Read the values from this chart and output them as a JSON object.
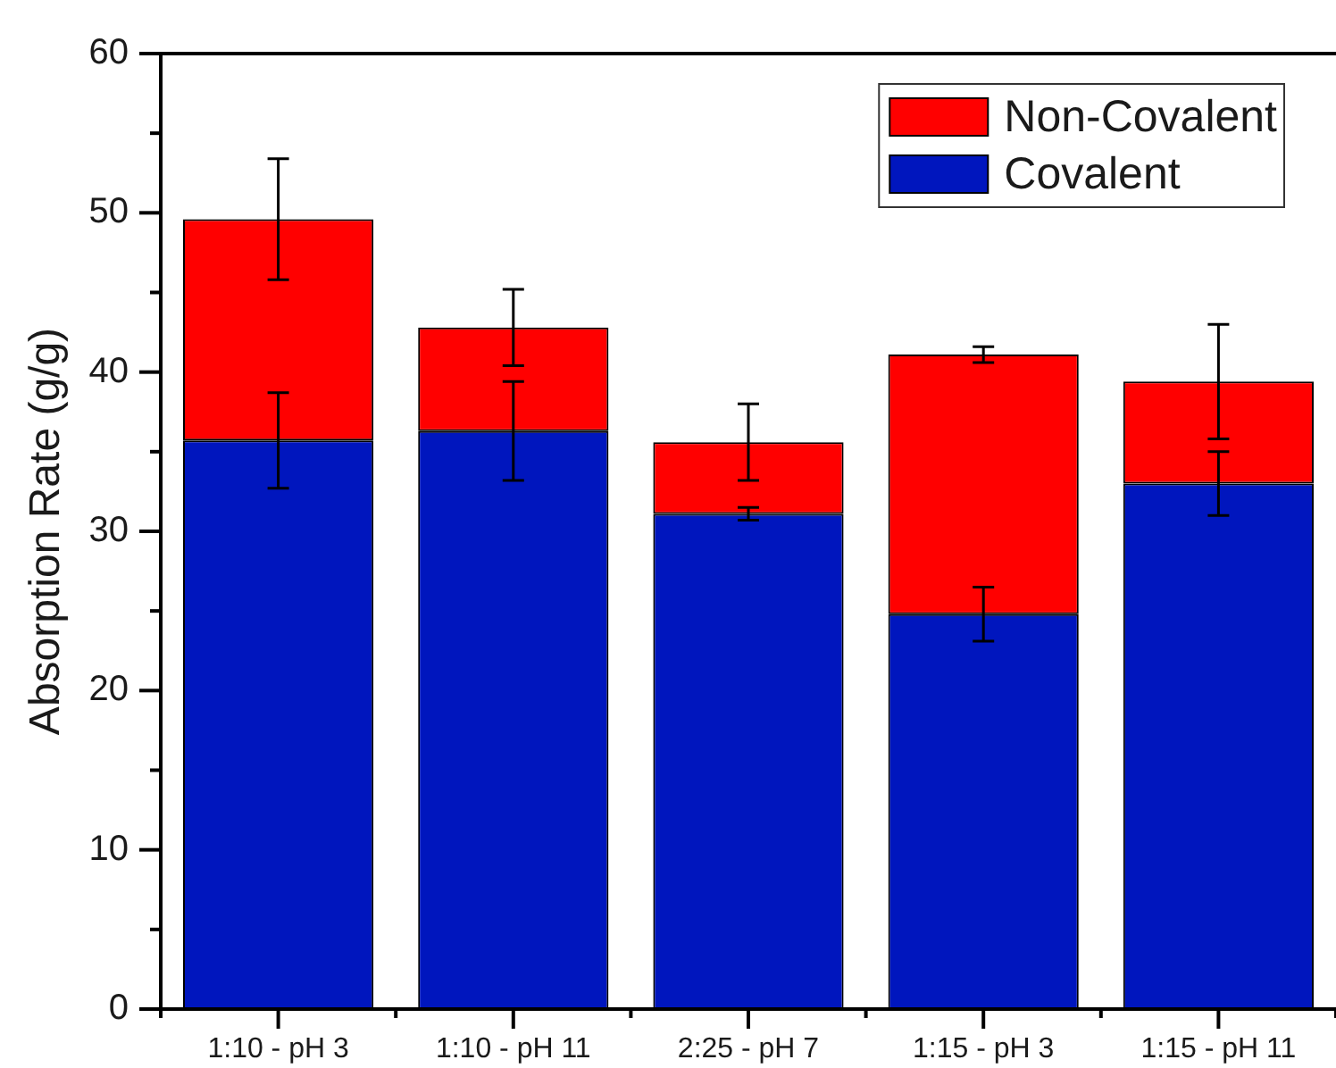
{
  "chart_data": {
    "type": "bar",
    "stacked": true,
    "ylabel": "Absorption Rate (g/g)",
    "categories": [
      "1:10 - pH 3",
      "1:10 - pH 11",
      "2:25 - pH 7",
      "1:15 - pH 3",
      "1:15 - pH 11"
    ],
    "series": [
      {
        "name": "Covalent",
        "color": "#0016be",
        "values": [
          35.7,
          36.3,
          31.1,
          24.8,
          33.0
        ],
        "errors": [
          3.0,
          3.1,
          0.4,
          1.7,
          2.0
        ]
      },
      {
        "name": "Non-Covalent",
        "color": "#ff0000",
        "values": [
          13.9,
          6.5,
          4.5,
          16.3,
          6.4
        ],
        "errors": [
          3.8,
          2.4,
          2.4,
          0.5,
          3.6
        ]
      }
    ],
    "ylim": [
      0,
      60
    ],
    "yticks": [
      0,
      {
        "value": 5,
        "label": null
      },
      10,
      {
        "value": 15,
        "label": null
      },
      20,
      {
        "value": 25,
        "label": null
      },
      30,
      {
        "value": 35,
        "label": null
      },
      40,
      {
        "value": 45,
        "label": null
      },
      50,
      {
        "value": 55,
        "label": null
      },
      60
    ],
    "grid": false,
    "legend": "top right"
  }
}
